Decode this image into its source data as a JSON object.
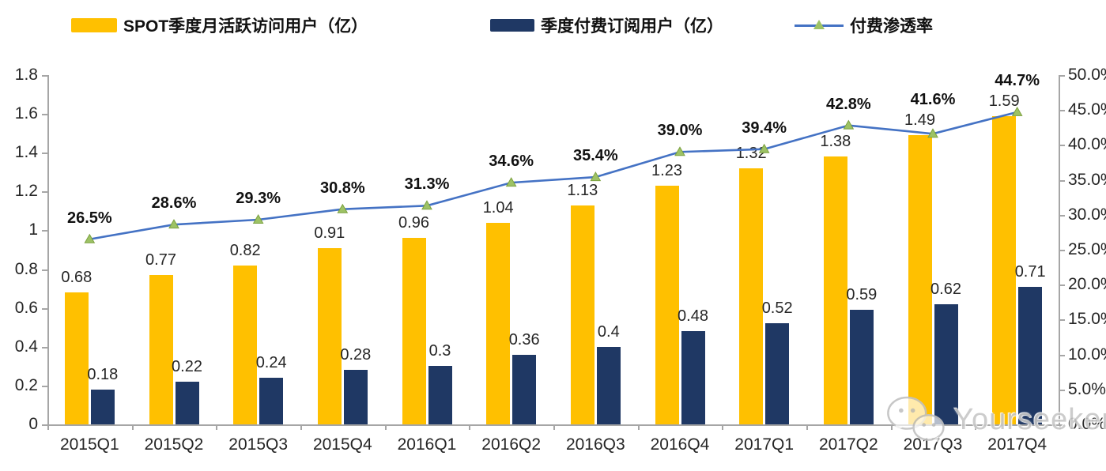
{
  "legend": [
    {
      "label": "SPOT季度月活跃访问用户（亿）",
      "swatch": "bar",
      "color": "#FFC000"
    },
    {
      "label": "季度付费订阅用户（亿）",
      "swatch": "bar",
      "color": "#1F3864"
    },
    {
      "label": "付费渗透率",
      "swatch": "line",
      "color": "#4472C4",
      "marker_color": "#9DC265"
    }
  ],
  "chart_data": {
    "type": "bar",
    "subtype": "grouped-bars-with-line",
    "categories": [
      "2015Q1",
      "2015Q2",
      "2015Q3",
      "2015Q4",
      "2016Q1",
      "2016Q2",
      "2016Q3",
      "2016Q4",
      "2017Q1",
      "2017Q2",
      "2017Q3",
      "2017Q4"
    ],
    "series": [
      {
        "name": "SPOT季度月活跃访问用户（亿）",
        "type": "bar",
        "axis": "left",
        "color": "#FFC000",
        "values": [
          0.68,
          0.77,
          0.82,
          0.91,
          0.96,
          1.04,
          1.13,
          1.23,
          1.32,
          1.38,
          1.49,
          1.59
        ],
        "labels": [
          "0.68",
          "0.77",
          "0.82",
          "0.91",
          "0.96",
          "1.04",
          "1.13",
          "1.23",
          "1.32",
          "1.38",
          "1.49",
          "1.59"
        ]
      },
      {
        "name": "季度付费订阅用户（亿）",
        "type": "bar",
        "axis": "left",
        "color": "#1F3864",
        "values": [
          0.18,
          0.22,
          0.24,
          0.28,
          0.3,
          0.36,
          0.4,
          0.48,
          0.52,
          0.59,
          0.62,
          0.71
        ],
        "labels": [
          "0.18",
          "0.22",
          "0.24",
          "0.28",
          "0.3",
          "0.36",
          "0.4",
          "0.48",
          "0.52",
          "0.59",
          "0.62",
          "0.71"
        ]
      },
      {
        "name": "付费渗透率",
        "type": "line",
        "axis": "right",
        "color": "#4472C4",
        "marker": "triangle",
        "marker_color": "#9DC265",
        "marker_stroke": "#7CA13F",
        "values": [
          26.5,
          28.6,
          29.3,
          30.8,
          31.3,
          34.6,
          35.4,
          39.0,
          39.4,
          42.8,
          41.6,
          44.7
        ],
        "labels": [
          "26.5%",
          "28.6%",
          "29.3%",
          "30.8%",
          "31.3%",
          "34.6%",
          "35.4%",
          "39.0%",
          "39.4%",
          "42.8%",
          "41.6%",
          "44.7%"
        ]
      }
    ],
    "left_axis": {
      "min": 0,
      "max": 1.8,
      "step": 0.2,
      "ticks": [
        "0",
        "0.2",
        "0.4",
        "0.6",
        "0.8",
        "1",
        "1.2",
        "1.4",
        "1.6",
        "1.8"
      ]
    },
    "right_axis": {
      "min": 0,
      "max": 50,
      "step": 5,
      "ticks": [
        "0.0%",
        "5.0%",
        "10.0%",
        "15.0%",
        "20.0%",
        "25.0%",
        "30.0%",
        "35.0%",
        "40.0%",
        "45.0%",
        "50.0%"
      ]
    },
    "grid": false,
    "legend_position": "top"
  },
  "watermark": {
    "text": "Yourseeker",
    "icon": "wechat-icon"
  }
}
